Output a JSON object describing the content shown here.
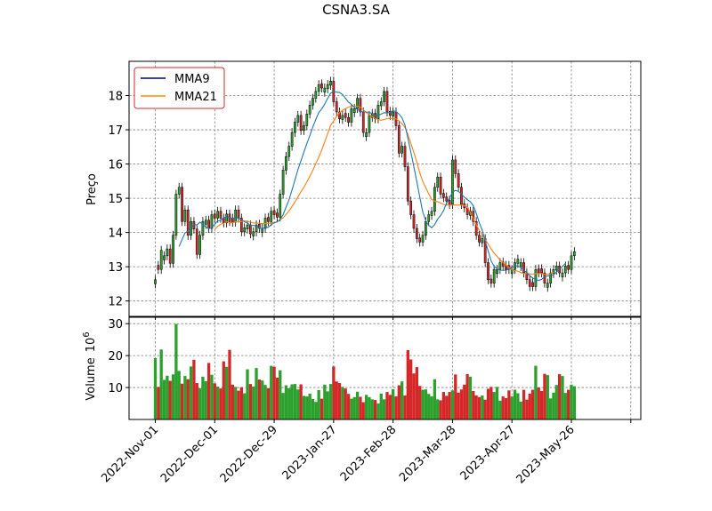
{
  "chart_data": {
    "type": "candlestick",
    "title": "CSNA3.SA",
    "price_panel": {
      "ylabel": "Preço",
      "ylim": [
        11.55,
        19.0
      ],
      "yticks": [
        12,
        13,
        14,
        15,
        16,
        17,
        18
      ],
      "grid": true,
      "legend_position": "top-left",
      "legend": [
        {
          "name": "MMA9",
          "color": "#00008b"
        },
        {
          "name": "MMA21",
          "color": "#ff8c00"
        }
      ],
      "up_color": "#2ca02c",
      "down_color": "#d62728",
      "ma9_color": "#1f77b4",
      "ma21_color": "#ff7f0e"
    },
    "volume_panel": {
      "ylabel": "Volume",
      "exponent_label": "10",
      "exponent": "6",
      "ylim": [
        0,
        32
      ],
      "yticks": [
        10,
        20,
        30
      ],
      "grid": true
    },
    "x_tick_labels": [
      "2022-Nov-01",
      "2022-Dec-01",
      "2022-Dec-29",
      "2023-Jan-27",
      "2023-Feb-28",
      "2023-Mar-28",
      "2023-Apr-27",
      "2023-May-26"
    ],
    "x_tick_index": [
      0,
      20,
      40,
      60,
      80,
      100,
      120,
      140
    ],
    "closes": [
      12.62,
      12.92,
      13.48,
      13.32,
      13.52,
      13.1,
      13.92,
      15.12,
      15.32,
      14.32,
      14.66,
      13.92,
      14.32,
      14.1,
      13.36,
      13.92,
      14.32,
      14.36,
      14.12,
      14.52,
      14.42,
      14.62,
      14.42,
      14.28,
      14.54,
      14.32,
      14.3,
      14.66,
      14.42,
      14.02,
      14.14,
      14.22,
      13.96,
      14.02,
      14.22,
      14.12,
      14.12,
      14.42,
      14.32,
      14.62,
      14.52,
      14.45,
      15.12,
      15.82,
      16.22,
      16.52,
      16.92,
      17.22,
      17.42,
      16.98,
      17.12,
      17.46,
      17.72,
      17.92,
      18.12,
      18.32,
      18.22,
      18.22,
      18.32,
      18.42,
      17.82,
      17.52,
      17.32,
      17.42,
      17.36,
      17.22,
      17.62,
      17.62,
      17.92,
      17.52,
      16.92,
      16.92,
      17.42,
      17.48,
      17.32,
      17.72,
      17.82,
      18.12,
      17.52,
      17.42,
      17.52,
      17.12,
      16.32,
      16.52,
      15.92,
      14.92,
      14.52,
      14.12,
      13.82,
      13.72,
      13.92,
      14.32,
      14.52,
      14.62,
      15.32,
      15.62,
      15.12,
      15.02,
      14.92,
      14.82,
      16.12,
      15.72,
      15.32,
      14.82,
      14.72,
      14.52,
      14.62,
      14.32,
      13.92,
      13.72,
      13.82,
      13.12,
      12.62,
      12.52,
      12.92,
      12.92,
      13.12,
      13.02,
      12.92,
      12.92,
      12.92,
      13.12,
      13.22,
      13.12,
      12.82,
      12.62,
      12.42,
      12.42,
      12.92,
      12.82,
      12.82,
      12.52,
      12.52,
      12.82,
      12.92,
      13.02,
      12.82,
      12.82,
      13.02,
      12.92,
      13.32,
      13.44
    ],
    "ma9": [
      null,
      null,
      null,
      null,
      null,
      null,
      null,
      null,
      13.59,
      13.79,
      13.99,
      14.04,
      14.15,
      14.24,
      14.22,
      14.3,
      14.24,
      14.16,
      14.11,
      14.14,
      14.24,
      14.34,
      14.35,
      14.43,
      14.46,
      14.44,
      14.41,
      14.44,
      14.42,
      14.37,
      14.31,
      14.28,
      14.2,
      14.21,
      14.2,
      14.13,
      14.11,
      14.15,
      14.15,
      14.23,
      14.28,
      14.31,
      14.38,
      14.52,
      14.74,
      14.96,
      15.24,
      15.54,
      15.84,
      16.09,
      16.35,
      16.6,
      16.83,
      17.08,
      17.3,
      17.5,
      17.61,
      17.75,
      17.92,
      18.07,
      18.12,
      18.1,
      18.09,
      18.03,
      17.92,
      17.81,
      17.74,
      17.65,
      17.59,
      17.54,
      17.52,
      17.52,
      17.51,
      17.47,
      17.41,
      17.42,
      17.46,
      17.5,
      17.49,
      17.51,
      17.56,
      17.53,
      17.46,
      17.35,
      17.14,
      16.75,
      16.34,
      15.92,
      15.48,
      15.03,
      14.6,
      14.34,
      14.21,
      14.14,
      14.23,
      14.39,
      14.5,
      14.64,
      14.86,
      15.01,
      15.18,
      15.23,
      15.2,
      15.12,
      15.03,
      14.96,
      14.9,
      14.78,
      14.56,
      14.29,
      14.07,
      13.75,
      13.46,
      13.17,
      13.01,
      12.94,
      12.9,
      12.89,
      12.9,
      12.92,
      12.98,
      13.02,
      13.02,
      12.98,
      12.91,
      12.82,
      12.74,
      12.67,
      12.63,
      12.6,
      12.63,
      12.71,
      12.73,
      12.75,
      12.77,
      12.84,
      12.93,
      13.01,
      13.1
    ],
    "ma21": [
      null,
      null,
      null,
      null,
      null,
      null,
      null,
      null,
      null,
      null,
      null,
      null,
      null,
      null,
      null,
      null,
      null,
      null,
      null,
      null,
      14.09,
      14.18,
      14.24,
      14.27,
      14.31,
      14.3,
      14.28,
      14.31,
      14.33,
      14.32,
      14.34,
      14.33,
      14.3,
      14.28,
      14.27,
      14.27,
      14.26,
      14.26,
      14.27,
      14.28,
      14.29,
      14.31,
      14.37,
      14.43,
      14.53,
      14.63,
      14.76,
      14.9,
      15.04,
      15.19,
      15.32,
      15.48,
      15.64,
      15.82,
      16.01,
      16.2,
      16.41,
      16.65,
      16.89,
      17.13,
      17.26,
      17.39,
      17.5,
      17.57,
      17.62,
      17.66,
      17.69,
      17.69,
      17.69,
      17.66,
      17.59,
      17.5,
      17.44,
      17.38,
      17.33,
      17.3,
      17.28,
      17.3,
      17.33,
      17.33,
      17.33,
      17.32,
      17.26,
      17.18,
      17.07,
      16.86,
      16.6,
      16.34,
      16.05,
      15.74,
      15.49,
      15.31,
      15.13,
      14.97,
      14.91,
      14.9,
      14.86,
      14.82,
      14.8,
      14.8,
      14.8,
      14.8,
      14.8,
      14.8,
      14.79,
      14.73,
      14.59,
      14.41,
      14.22,
      14.06,
      13.94,
      13.8,
      13.66,
      13.52,
      13.4,
      13.3,
      13.2,
      13.12,
      13.05,
      12.98,
      12.91,
      12.89,
      12.87,
      12.83,
      12.8,
      12.8,
      12.79,
      12.78,
      12.8,
      12.8,
      12.8,
      12.78,
      12.78,
      12.8,
      12.83
    ],
    "volumes": [
      19.2,
      10.2,
      21.9,
      12.4,
      13.7,
      12.1,
      14.1,
      29.9,
      15.2,
      11.2,
      13.6,
      12.6,
      16.6,
      18.7,
      11.4,
      9.8,
      13.4,
      12.0,
      17.7,
      14.0,
      11.3,
      10.3,
      9.7,
      18.2,
      16.5,
      21.8,
      10.9,
      10.2,
      9.0,
      10.1,
      8.2,
      15.7,
      11.1,
      10.3,
      16.1,
      12.5,
      12.2,
      10.8,
      9.8,
      16.8,
      16.5,
      13.1,
      15.4,
      8.3,
      10.7,
      9.8,
      11.0,
      11.1,
      9.4,
      11.0,
      7.4,
      7.2,
      8.1,
      6.4,
      5.5,
      9.2,
      6.5,
      10.9,
      8.8,
      11.1,
      16.6,
      11.9,
      11.4,
      10.2,
      9.7,
      8.0,
      6.5,
      7.0,
      8.7,
      7.1,
      5.4,
      7.7,
      7.0,
      6.3,
      6.1,
      5.0,
      8.1,
      6.3,
      8.6,
      7.7,
      9.5,
      7.2,
      10.7,
      11.9,
      7.5,
      21.7,
      18.8,
      14.4,
      16.4,
      10.5,
      9.3,
      9.4,
      8.0,
      7.2,
      12.6,
      6.3,
      6.0,
      8.6,
      7.4,
      8.6,
      9.1,
      14.1,
      8.4,
      9.4,
      10.9,
      14.2,
      13.4,
      8.9,
      7.5,
      7.0,
      7.5,
      6.2,
      9.6,
      10.2,
      8.6,
      10.2,
      5.9,
      7.2,
      6.7,
      9.1,
      7.2,
      9.3,
      8.2,
      5.6,
      9.3,
      6.2,
      8.1,
      9.3,
      16.8,
      10.0,
      8.9,
      14.3,
      13.9,
      6.6,
      8.4,
      10.8,
      14.2,
      13.6,
      8.3,
      9.3,
      10.9,
      10.4
    ],
    "colors": [
      "g",
      "r",
      "g",
      "g",
      "g",
      "r",
      "g",
      "g",
      "g",
      "r",
      "g",
      "r",
      "g",
      "r",
      "r",
      "g",
      "g",
      "g",
      "r",
      "g",
      "r",
      "g",
      "r",
      "r",
      "g",
      "r",
      "r",
      "g",
      "r",
      "r",
      "g",
      "g",
      "r",
      "g",
      "g",
      "r",
      "g",
      "g",
      "r",
      "g",
      "r",
      "r",
      "g",
      "g",
      "g",
      "g",
      "g",
      "g",
      "g",
      "r",
      "g",
      "g",
      "g",
      "g",
      "g",
      "g",
      "r",
      "g",
      "g",
      "g",
      "r",
      "r",
      "r",
      "g",
      "r",
      "r",
      "g",
      "g",
      "g",
      "r",
      "r",
      "g",
      "g",
      "g",
      "r",
      "g",
      "g",
      "g",
      "r",
      "r",
      "g",
      "r",
      "r",
      "g",
      "r",
      "r",
      "r",
      "r",
      "r",
      "r",
      "g",
      "g",
      "g",
      "g",
      "g",
      "g",
      "r",
      "r",
      "r",
      "r",
      "g",
      "r",
      "r",
      "r",
      "r",
      "r",
      "g",
      "r",
      "r",
      "r",
      "g",
      "r",
      "r",
      "r",
      "g",
      "g",
      "g",
      "r",
      "r",
      "r",
      "g",
      "g",
      "g",
      "g",
      "r",
      "r",
      "r",
      "r",
      "g",
      "r",
      "r",
      "r",
      "g",
      "g",
      "g",
      "g",
      "r",
      "g",
      "g",
      "r",
      "g",
      "g"
    ]
  }
}
